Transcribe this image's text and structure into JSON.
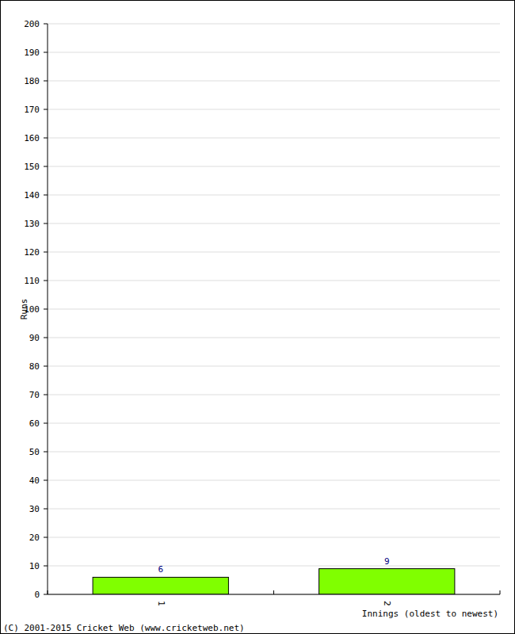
{
  "chart_data": {
    "type": "bar",
    "categories": [
      "1",
      "2"
    ],
    "values": [
      6,
      9
    ],
    "color": "#80ff00",
    "x_label": "Innings (oldest to newest)",
    "y_label": "Runs",
    "annotations": [
      "(C) 2001-2015 Cricket Web (www.cricketweb.net)"
    ],
    "ylim": [
      0,
      200
    ],
    "yticks": [
      0,
      10,
      20,
      30,
      40,
      50,
      60,
      70,
      80,
      90,
      100,
      110,
      120,
      130,
      140,
      150,
      160,
      170,
      180,
      190,
      200
    ],
    "grid": true,
    "data_labels": true
  }
}
